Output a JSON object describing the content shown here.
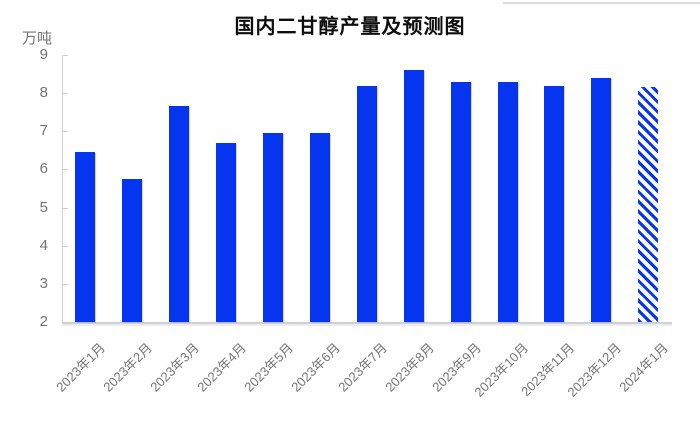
{
  "page": {
    "background": "#ffffff"
  },
  "chart_data": {
    "type": "bar",
    "title": "国内二甘醇产量及预测图",
    "ylabel": "万吨",
    "xlabel": "",
    "categories": [
      "2023年1月",
      "2023年2月",
      "2023年3月",
      "2023年4月",
      "2023年5月",
      "2023年6月",
      "2023年7月",
      "2023年8月",
      "2023年9月",
      "2023年10月",
      "2023年11月",
      "2023年12月",
      "2024年1月"
    ],
    "values": [
      6.45,
      5.75,
      7.65,
      6.7,
      6.95,
      6.95,
      8.2,
      8.6,
      8.3,
      8.3,
      8.2,
      8.4,
      8.15
    ],
    "forecast_indices": [
      12
    ],
    "forecast_style": "diagonal-hatch",
    "ylim": [
      2,
      9
    ],
    "yticks": [
      2,
      3,
      4,
      5,
      6,
      7,
      8,
      9
    ],
    "x_label_rotation": -45,
    "grid": false,
    "legend": "none",
    "colors": {
      "bar": "#0635f0",
      "axis": "#cfcfd6",
      "tick_label": "#737373",
      "x_label": "#757575",
      "title": "#0d0d0d",
      "divider": "#dcdce0"
    }
  }
}
